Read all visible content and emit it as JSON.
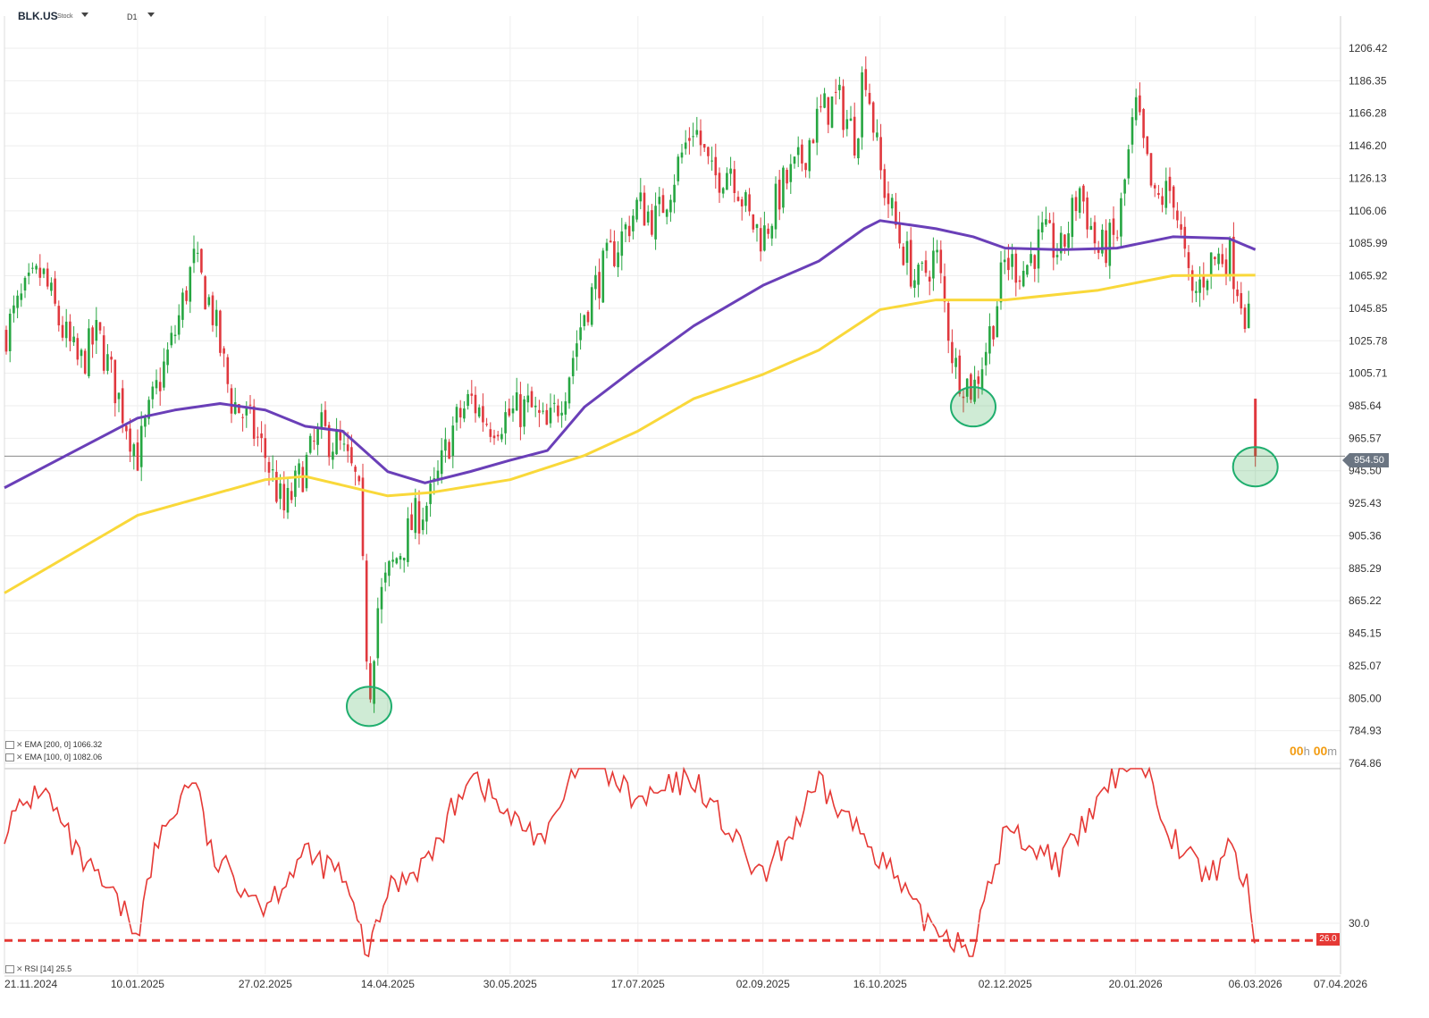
{
  "toolbar": {
    "symbol": "BLK.US",
    "symbol_type": "Stock",
    "timeframe": "D1"
  },
  "legend": {
    "ema200": "EMA [200, 0] 1066.32",
    "ema100": "EMA [100, 0] 1082.06",
    "rsi": "RSI [14] 25.5"
  },
  "timer": {
    "h": "00",
    "h_unit": "h",
    "m": "00",
    "m_unit": "m"
  },
  "current_price": "954.50",
  "rsi_level_label": "26.0",
  "colors": {
    "up": "#26a641",
    "down": "#e0383e",
    "ema100": "#6a3fb8",
    "ema200": "#f9d83a",
    "rsi": "#e53935"
  },
  "chart_data": [
    {
      "type": "candlestick",
      "price_axis_ticks": [
        "1206.42",
        "1186.35",
        "1166.28",
        "1146.20",
        "1126.13",
        "1106.06",
        "1085.99",
        "1065.92",
        "1045.85",
        "1025.78",
        "1005.71",
        "985.64",
        "965.57",
        "945.50",
        "925.43",
        "905.36",
        "885.29",
        "865.22",
        "845.15",
        "825.07",
        "805.00",
        "784.93",
        "764.86"
      ],
      "date_axis_ticks": [
        "21.11.2024",
        "10.01.2025",
        "27.02.2025",
        "14.04.2025",
        "30.05.2025",
        "17.07.2025",
        "02.09.2025",
        "16.10.2025",
        "02.12.2025",
        "20.01.2026",
        "06.03.2026",
        "07.04.2026"
      ],
      "close_path": [
        {
          "x": "21.11.2024",
          "y": 1030
        },
        {
          "x": "28.11.2024",
          "y": 1052
        },
        {
          "x": "05.12.2024",
          "y": 1068
        },
        {
          "x": "12.12.2024",
          "y": 1035
        },
        {
          "x": "19.12.2024",
          "y": 1010
        },
        {
          "x": "26.12.2024",
          "y": 1030
        },
        {
          "x": "02.01.2025",
          "y": 995
        },
        {
          "x": "10.01.2025",
          "y": 955
        },
        {
          "x": "17.01.2025",
          "y": 995
        },
        {
          "x": "24.01.2025",
          "y": 1030
        },
        {
          "x": "31.01.2025",
          "y": 1075
        },
        {
          "x": "07.02.2025",
          "y": 1045
        },
        {
          "x": "14.02.2025",
          "y": 990
        },
        {
          "x": "21.02.2025",
          "y": 975
        },
        {
          "x": "27.02.2025",
          "y": 955
        },
        {
          "x": "06.03.2025",
          "y": 920
        },
        {
          "x": "13.03.2025",
          "y": 945
        },
        {
          "x": "20.03.2025",
          "y": 970
        },
        {
          "x": "27.03.2025",
          "y": 960
        },
        {
          "x": "03.04.2025",
          "y": 935
        },
        {
          "x": "07.04.2025",
          "y": 805
        },
        {
          "x": "10.04.2025",
          "y": 860
        },
        {
          "x": "14.04.2025",
          "y": 880
        },
        {
          "x": "24.04.2025",
          "y": 915
        },
        {
          "x": "01.05.2025",
          "y": 930
        },
        {
          "x": "08.05.2025",
          "y": 970
        },
        {
          "x": "15.05.2025",
          "y": 990
        },
        {
          "x": "22.05.2025",
          "y": 975
        },
        {
          "x": "30.05.2025",
          "y": 980
        },
        {
          "x": "06.06.2025",
          "y": 985
        },
        {
          "x": "13.06.2025",
          "y": 970
        },
        {
          "x": "20.06.2025",
          "y": 1000
        },
        {
          "x": "27.06.2025",
          "y": 1045
        },
        {
          "x": "04.07.2025",
          "y": 1070
        },
        {
          "x": "11.07.2025",
          "y": 1090
        },
        {
          "x": "17.07.2025",
          "y": 1110
        },
        {
          "x": "24.07.2025",
          "y": 1100
        },
        {
          "x": "31.07.2025",
          "y": 1130
        },
        {
          "x": "07.08.2025",
          "y": 1160
        },
        {
          "x": "14.08.2025",
          "y": 1125
        },
        {
          "x": "21.08.2025",
          "y": 1135
        },
        {
          "x": "28.08.2025",
          "y": 1100
        },
        {
          "x": "02.09.2025",
          "y": 1090
        },
        {
          "x": "09.09.2025",
          "y": 1120
        },
        {
          "x": "16.09.2025",
          "y": 1135
        },
        {
          "x": "23.09.2025",
          "y": 1165
        },
        {
          "x": "30.09.2025",
          "y": 1175
        },
        {
          "x": "07.10.2025",
          "y": 1150
        },
        {
          "x": "10.10.2025",
          "y": 1200
        },
        {
          "x": "16.10.2025",
          "y": 1130
        },
        {
          "x": "23.10.2025",
          "y": 1090
        },
        {
          "x": "30.10.2025",
          "y": 1060
        },
        {
          "x": "06.11.2025",
          "y": 1080
        },
        {
          "x": "13.11.2025",
          "y": 1010
        },
        {
          "x": "20.11.2025",
          "y": 995
        },
        {
          "x": "27.11.2025",
          "y": 1035
        },
        {
          "x": "02.12.2025",
          "y": 1075
        },
        {
          "x": "09.12.2025",
          "y": 1070
        },
        {
          "x": "16.12.2025",
          "y": 1090
        },
        {
          "x": "23.12.2025",
          "y": 1080
        },
        {
          "x": "30.12.2025",
          "y": 1120
        },
        {
          "x": "06.01.2026",
          "y": 1080
        },
        {
          "x": "13.01.2026",
          "y": 1090
        },
        {
          "x": "20.01.2026",
          "y": 1170
        },
        {
          "x": "27.01.2026",
          "y": 1110
        },
        {
          "x": "03.02.2026",
          "y": 1120
        },
        {
          "x": "10.02.2026",
          "y": 1050
        },
        {
          "x": "17.02.2026",
          "y": 1075
        },
        {
          "x": "24.02.2026",
          "y": 1080
        },
        {
          "x": "03.03.2026",
          "y": 1040
        },
        {
          "x": "05.03.2026",
          "y": 1030
        },
        {
          "x": "06.03.2026",
          "y": 954.5
        }
      ],
      "ema100": [
        {
          "x": "21.11.2024",
          "y": 935
        },
        {
          "x": "10.01.2025",
          "y": 978
        },
        {
          "x": "24.01.2025",
          "y": 983
        },
        {
          "x": "10.02.2025",
          "y": 987
        },
        {
          "x": "27.02.2025",
          "y": 983
        },
        {
          "x": "14.03.2025",
          "y": 973
        },
        {
          "x": "28.03.2025",
          "y": 970
        },
        {
          "x": "14.04.2025",
          "y": 945
        },
        {
          "x": "28.04.2025",
          "y": 938
        },
        {
          "x": "15.05.2025",
          "y": 945
        },
        {
          "x": "30.05.2025",
          "y": 952
        },
        {
          "x": "13.06.2025",
          "y": 958
        },
        {
          "x": "27.06.2025",
          "y": 985
        },
        {
          "x": "17.07.2025",
          "y": 1010
        },
        {
          "x": "07.08.2025",
          "y": 1035
        },
        {
          "x": "02.09.2025",
          "y": 1060
        },
        {
          "x": "23.09.2025",
          "y": 1075
        },
        {
          "x": "10.10.2025",
          "y": 1095
        },
        {
          "x": "16.10.2025",
          "y": 1100
        },
        {
          "x": "06.11.2025",
          "y": 1095
        },
        {
          "x": "20.11.2025",
          "y": 1090
        },
        {
          "x": "02.12.2025",
          "y": 1083
        },
        {
          "x": "23.12.2025",
          "y": 1082
        },
        {
          "x": "13.01.2026",
          "y": 1083
        },
        {
          "x": "03.02.2026",
          "y": 1090
        },
        {
          "x": "24.02.2026",
          "y": 1089
        },
        {
          "x": "06.03.2026",
          "y": 1082.06
        }
      ],
      "ema200": [
        {
          "x": "21.11.2024",
          "y": 870
        },
        {
          "x": "10.01.2025",
          "y": 918
        },
        {
          "x": "27.02.2025",
          "y": 940
        },
        {
          "x": "14.03.2025",
          "y": 942
        },
        {
          "x": "14.04.2025",
          "y": 930
        },
        {
          "x": "30.04.2025",
          "y": 932
        },
        {
          "x": "30.05.2025",
          "y": 940
        },
        {
          "x": "27.06.2025",
          "y": 955
        },
        {
          "x": "17.07.2025",
          "y": 970
        },
        {
          "x": "07.08.2025",
          "y": 990
        },
        {
          "x": "02.09.2025",
          "y": 1005
        },
        {
          "x": "23.09.2025",
          "y": 1020
        },
        {
          "x": "16.10.2025",
          "y": 1045
        },
        {
          "x": "06.11.2025",
          "y": 1051
        },
        {
          "x": "02.12.2025",
          "y": 1051
        },
        {
          "x": "06.01.2026",
          "y": 1057
        },
        {
          "x": "03.02.2026",
          "y": 1066
        },
        {
          "x": "06.03.2026",
          "y": 1066.32
        }
      ]
    },
    {
      "type": "line",
      "rsi_ticks": [
        "30.0"
      ],
      "oversold_level": 26.0,
      "values": [
        {
          "x": "21.11.2024",
          "y": 52
        },
        {
          "x": "05.12.2024",
          "y": 62
        },
        {
          "x": "19.12.2024",
          "y": 45
        },
        {
          "x": "02.01.2025",
          "y": 35
        },
        {
          "x": "10.01.2025",
          "y": 28
        },
        {
          "x": "17.01.2025",
          "y": 48
        },
        {
          "x": "31.01.2025",
          "y": 65
        },
        {
          "x": "07.02.2025",
          "y": 45
        },
        {
          "x": "21.02.2025",
          "y": 38
        },
        {
          "x": "27.02.2025",
          "y": 34
        },
        {
          "x": "13.03.2025",
          "y": 46
        },
        {
          "x": "27.03.2025",
          "y": 42
        },
        {
          "x": "07.04.2025",
          "y": 22
        },
        {
          "x": "14.04.2025",
          "y": 38
        },
        {
          "x": "01.05.2025",
          "y": 46
        },
        {
          "x": "15.05.2025",
          "y": 66
        },
        {
          "x": "30.05.2025",
          "y": 54
        },
        {
          "x": "13.06.2025",
          "y": 50
        },
        {
          "x": "27.06.2025",
          "y": 70
        },
        {
          "x": "17.07.2025",
          "y": 58
        },
        {
          "x": "07.08.2025",
          "y": 64
        },
        {
          "x": "28.08.2025",
          "y": 44
        },
        {
          "x": "02.09.2025",
          "y": 40
        },
        {
          "x": "23.09.2025",
          "y": 62
        },
        {
          "x": "16.10.2025",
          "y": 46
        },
        {
          "x": "30.10.2025",
          "y": 32
        },
        {
          "x": "20.11.2025",
          "y": 24
        },
        {
          "x": "02.12.2025",
          "y": 52
        },
        {
          "x": "23.12.2025",
          "y": 44
        },
        {
          "x": "20.01.2026",
          "y": 72
        },
        {
          "x": "03.02.2026",
          "y": 50
        },
        {
          "x": "17.02.2026",
          "y": 40
        },
        {
          "x": "24.02.2026",
          "y": 49
        },
        {
          "x": "03.03.2026",
          "y": 38
        },
        {
          "x": "06.03.2026",
          "y": 25.5
        }
      ]
    }
  ]
}
